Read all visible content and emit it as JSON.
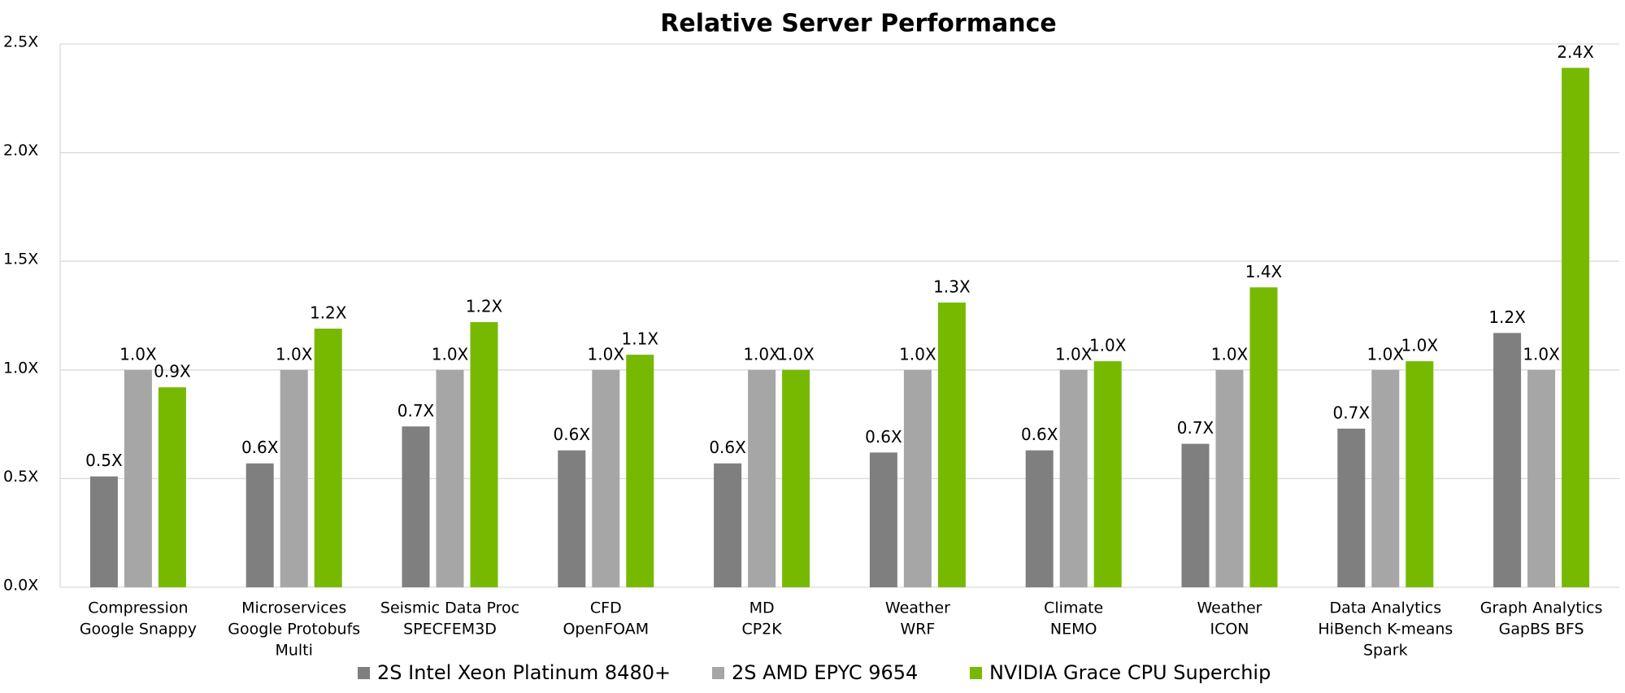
{
  "chart_data": {
    "type": "bar",
    "title": "Relative Server Performance",
    "categories": [
      [
        "Compression",
        "Google Snappy"
      ],
      [
        "Microservices",
        "Google Protobufs",
        "Multi"
      ],
      [
        "Seismic Data Proc",
        "SPECFEM3D"
      ],
      [
        "CFD",
        "OpenFOAM"
      ],
      [
        "MD",
        "CP2K"
      ],
      [
        "Weather",
        "WRF"
      ],
      [
        "Climate",
        "NEMO"
      ],
      [
        "Weather",
        "ICON"
      ],
      [
        "Data Analytics",
        "HiBench K-means",
        "Spark"
      ],
      [
        "Graph Analytics",
        "GapBS BFS"
      ]
    ],
    "series": [
      {
        "name": "2S Intel Xeon Platinum 8480+",
        "color": "#7f7f7f",
        "values": [
          0.51,
          0.57,
          0.74,
          0.63,
          0.57,
          0.62,
          0.63,
          0.66,
          0.73,
          1.17
        ],
        "value_labels": [
          "0.5X",
          "0.6X",
          "0.7X",
          "0.6X",
          "0.6X",
          "0.6X",
          "0.6X",
          "0.7X",
          "0.7X",
          "1.2X"
        ]
      },
      {
        "name": "2S AMD EPYC 9654",
        "color": "#a6a6a6",
        "values": [
          1.0,
          1.0,
          1.0,
          1.0,
          1.0,
          1.0,
          1.0,
          1.0,
          1.0,
          1.0
        ],
        "value_labels": [
          "1.0X",
          "1.0X",
          "1.0X",
          "1.0X",
          "1.0X",
          "1.0X",
          "1.0X",
          "1.0X",
          "1.0X",
          "1.0X"
        ]
      },
      {
        "name": "NVIDIA Grace CPU Superchip",
        "color": "#76b900",
        "values": [
          0.92,
          1.19,
          1.22,
          1.07,
          1.0,
          1.31,
          1.04,
          1.38,
          1.04,
          2.39
        ],
        "value_labels": [
          "0.9X",
          "1.2X",
          "1.2X",
          "1.1X",
          "1.0X",
          "1.3X",
          "1.0X",
          "1.4X",
          "1.0X",
          "2.4X"
        ]
      }
    ],
    "ylim": [
      0,
      2.5
    ],
    "yticks": [
      {
        "value": 0,
        "label": "0.0X"
      },
      {
        "value": 0.5,
        "label": "0.5X"
      },
      {
        "value": 1,
        "label": "1.0X"
      },
      {
        "value": 1.5,
        "label": "1.5X"
      },
      {
        "value": 2,
        "label": "2.0X"
      },
      {
        "value": 2.5,
        "label": "2.5X"
      }
    ],
    "grid": true,
    "legend": "bottom"
  }
}
